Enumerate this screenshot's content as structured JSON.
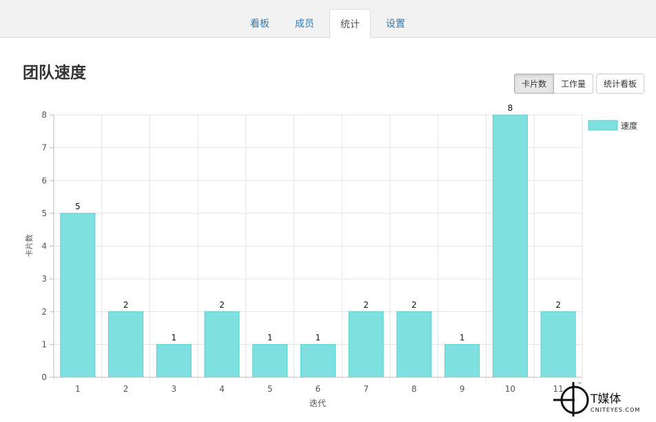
{
  "tabs": [
    {
      "label": "看板",
      "active": false
    },
    {
      "label": "成员",
      "active": false
    },
    {
      "label": "统计",
      "active": true
    },
    {
      "label": "设置",
      "active": false
    }
  ],
  "page_title": "团队速度",
  "toggle_buttons": {
    "cards": "卡片数",
    "workload": "工作量",
    "selected": "卡片数"
  },
  "stats_board_button": "统计看板",
  "watermark": {
    "brand": "T媒体",
    "site": "CNITEYES.COM",
    "tm": "™"
  },
  "colors": {
    "bar_fill": "#7fe0e0",
    "bar_stroke": "#56cfcf",
    "link": "#337ab7"
  },
  "chart_data": {
    "type": "bar",
    "title": "",
    "xlabel": "迭代",
    "ylabel": "卡片数",
    "categories": [
      "1",
      "2",
      "3",
      "4",
      "5",
      "6",
      "7",
      "8",
      "9",
      "10",
      "11"
    ],
    "series": [
      {
        "name": "速度",
        "values": [
          5,
          2,
          1,
          2,
          1,
          1,
          2,
          2,
          1,
          8,
          2
        ]
      }
    ],
    "ylim": [
      0,
      8
    ],
    "yticks": [
      0,
      1,
      2,
      3,
      4,
      5,
      6,
      7,
      8
    ],
    "grid": true,
    "data_labels": true,
    "legend": "top-right"
  }
}
